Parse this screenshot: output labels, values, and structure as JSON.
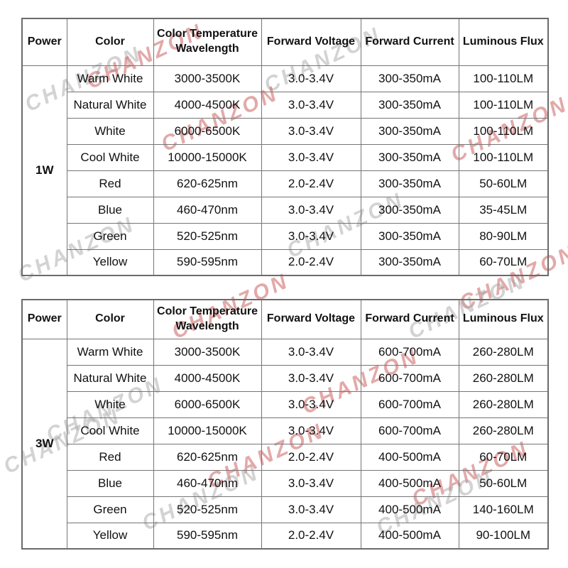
{
  "watermark": {
    "text": "CHANZON",
    "pink": "#c85555",
    "gray": "#a8a8a8"
  },
  "tables": [
    {
      "power": "1W",
      "columns": [
        "Power",
        "Color",
        "Color Temperature Wavelength",
        "Forward Voltage",
        "Forward Current",
        "Luminous Flux"
      ],
      "rows": [
        {
          "color": "Warm White",
          "temp_wavelength": "3000-3500K",
          "voltage": "3.0-3.4V",
          "current": "300-350mA",
          "flux": "100-110LM"
        },
        {
          "color": "Natural White",
          "temp_wavelength": "4000-4500K",
          "voltage": "3.0-3.4V",
          "current": "300-350mA",
          "flux": "100-110LM"
        },
        {
          "color": "White",
          "temp_wavelength": "6000-6500K",
          "voltage": "3.0-3.4V",
          "current": "300-350mA",
          "flux": "100-110LM"
        },
        {
          "color": "Cool White",
          "temp_wavelength": "10000-15000K",
          "voltage": "3.0-3.4V",
          "current": "300-350mA",
          "flux": "100-110LM"
        },
        {
          "color": "Red",
          "temp_wavelength": "620-625nm",
          "voltage": "2.0-2.4V",
          "current": "300-350mA",
          "flux": "50-60LM"
        },
        {
          "color": "Blue",
          "temp_wavelength": "460-470nm",
          "voltage": "3.0-3.4V",
          "current": "300-350mA",
          "flux": "35-45LM"
        },
        {
          "color": "Green",
          "temp_wavelength": "520-525nm",
          "voltage": "3.0-3.4V",
          "current": "300-350mA",
          "flux": "80-90LM"
        },
        {
          "color": "Yellow",
          "temp_wavelength": "590-595nm",
          "voltage": "2.0-2.4V",
          "current": "300-350mA",
          "flux": "60-70LM"
        }
      ]
    },
    {
      "power": "3W",
      "columns": [
        "Power",
        "Color",
        "Color Temperature Wavelength",
        "Forward Voltage",
        "Forward Current",
        "Luminous Flux"
      ],
      "rows": [
        {
          "color": "Warm White",
          "temp_wavelength": "3000-3500K",
          "voltage": "3.0-3.4V",
          "current": "600-700mA",
          "flux": "260-280LM"
        },
        {
          "color": "Natural White",
          "temp_wavelength": "4000-4500K",
          "voltage": "3.0-3.4V",
          "current": "600-700mA",
          "flux": "260-280LM"
        },
        {
          "color": "White",
          "temp_wavelength": "6000-6500K",
          "voltage": "3.0-3.4V",
          "current": "600-700mA",
          "flux": "260-280LM"
        },
        {
          "color": "Cool White",
          "temp_wavelength": "10000-15000K",
          "voltage": "3.0-3.4V",
          "current": "600-700mA",
          "flux": "260-280LM"
        },
        {
          "color": "Red",
          "temp_wavelength": "620-625nm",
          "voltage": "2.0-2.4V",
          "current": "400-500mA",
          "flux": "60-70LM"
        },
        {
          "color": "Blue",
          "temp_wavelength": "460-470nm",
          "voltage": "3.0-3.4V",
          "current": "400-500mA",
          "flux": "50-60LM"
        },
        {
          "color": "Green",
          "temp_wavelength": "520-525nm",
          "voltage": "3.0-3.4V",
          "current": "400-500mA",
          "flux": "140-160LM"
        },
        {
          "color": "Yellow",
          "temp_wavelength": "590-595nm",
          "voltage": "2.0-2.4V",
          "current": "400-500mA",
          "flux": "90-100LM"
        }
      ]
    }
  ]
}
